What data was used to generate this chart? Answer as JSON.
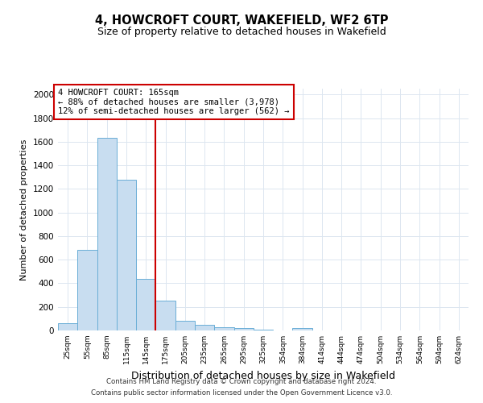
{
  "title": "4, HOWCROFT COURT, WAKEFIELD, WF2 6TP",
  "subtitle": "Size of property relative to detached houses in Wakefield",
  "xlabel": "Distribution of detached houses by size in Wakefield",
  "ylabel": "Number of detached properties",
  "bins": [
    "25sqm",
    "55sqm",
    "85sqm",
    "115sqm",
    "145sqm",
    "175sqm",
    "205sqm",
    "235sqm",
    "265sqm",
    "295sqm",
    "325sqm",
    "354sqm",
    "384sqm",
    "414sqm",
    "444sqm",
    "474sqm",
    "504sqm",
    "534sqm",
    "564sqm",
    "594sqm",
    "624sqm"
  ],
  "values": [
    60,
    680,
    1630,
    1280,
    440,
    250,
    85,
    45,
    30,
    20,
    10,
    0,
    20,
    0,
    0,
    0,
    0,
    0,
    0,
    0,
    0
  ],
  "bar_color": "#c8ddf0",
  "bar_edge_color": "#6aaed6",
  "vline_pos": 4.5,
  "vline_color": "#cc0000",
  "annotation_text": "4 HOWCROFT COURT: 165sqm\n← 88% of detached houses are smaller (3,978)\n12% of semi-detached houses are larger (562) →",
  "annotation_box_color": "#cc0000",
  "ylim": [
    0,
    2050
  ],
  "yticks": [
    0,
    200,
    400,
    600,
    800,
    1000,
    1200,
    1400,
    1600,
    1800,
    2000
  ],
  "footnote1": "Contains HM Land Registry data © Crown copyright and database right 2024.",
  "footnote2": "Contains public sector information licensed under the Open Government Licence v3.0.",
  "background_color": "#ffffff",
  "grid_color": "#dce6f0",
  "title_fontsize": 10.5,
  "subtitle_fontsize": 9,
  "ylabel_fontsize": 8,
  "xlabel_fontsize": 9
}
